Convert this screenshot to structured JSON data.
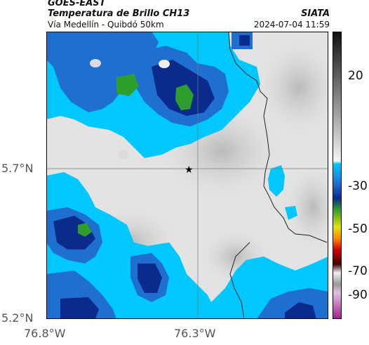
{
  "header": {
    "line1": "GOES-EAST",
    "line2": "Temperatura de Brillo CH13",
    "line3": "Vía Medellín - Quibdó 50km",
    "org": "SIATA",
    "timestamp": "2024-07-04 11:59"
  },
  "map": {
    "lat_labels": [
      "5.7°N",
      "5.2°N"
    ],
    "lon_labels": [
      "76.8°W",
      "76.3°W"
    ],
    "marker": "star-marker",
    "colors": {
      "clear": "#e6e6e6",
      "cloud_cyan": "#00c8ff",
      "cloud_blue": "#1f6fd0",
      "cloud_navy": "#0a2a8c",
      "cloud_green": "#2e9e2e"
    }
  },
  "colorbar": {
    "ticks": [
      "20",
      "-30",
      "-50",
      "-70",
      "-90"
    ]
  }
}
